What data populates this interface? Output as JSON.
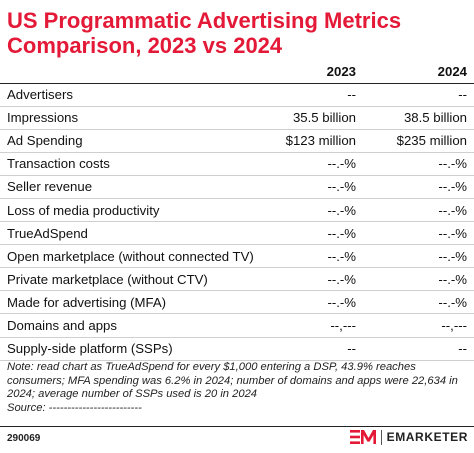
{
  "title": "US Programmatic Advertising Metrics Comparison, 2023 vs 2024",
  "table": {
    "headers": [
      "",
      "2023",
      "2024"
    ],
    "rows": [
      {
        "label": "Advertisers",
        "v2023": "--",
        "v2024": "--"
      },
      {
        "label": "Impressions",
        "v2023": "35.5 billion",
        "v2024": "38.5 billion"
      },
      {
        "label": "Ad Spending",
        "v2023": "$123 million",
        "v2024": "$235 million"
      },
      {
        "label": "Transaction costs",
        "v2023": "--.-%",
        "v2024": "--.-%"
      },
      {
        "label": "Seller revenue",
        "v2023": "--.-%",
        "v2024": "--.-%"
      },
      {
        "label": "Loss of media productivity",
        "v2023": "--.-%",
        "v2024": "--.-%"
      },
      {
        "label": "TrueAdSpend",
        "v2023": "--.-%",
        "v2024": "--.-%"
      },
      {
        "label": "Open marketplace (without connected TV)",
        "v2023": "--.-%",
        "v2024": "--.-%"
      },
      {
        "label": "Private marketplace (without CTV)",
        "v2023": "--.-%",
        "v2024": "--.-%"
      },
      {
        "label": "Made for advertising (MFA)",
        "v2023": "--.-%",
        "v2024": "--.-%"
      },
      {
        "label": "Domains and apps",
        "v2023": "--,---",
        "v2024": "--,---"
      },
      {
        "label": "Supply-side platform (SSPs)",
        "v2023": "--",
        "v2024": "--"
      }
    ]
  },
  "note": "Note: read chart as TrueAdSpend for every $1,000 entering a DSP, 43.9% reaches consumers; MFA spending was 6.2% in 2024; number of domains and apps were 22,634 in 2024; average number of SSPs used is 20 in 2024",
  "source": "Source: -------------------------",
  "footer": {
    "chart_id": "290069",
    "brand_name": "EMARKETER",
    "brand_mark": "em-logo-icon"
  },
  "colors": {
    "title": "#e31937",
    "brand": "#e31937"
  }
}
